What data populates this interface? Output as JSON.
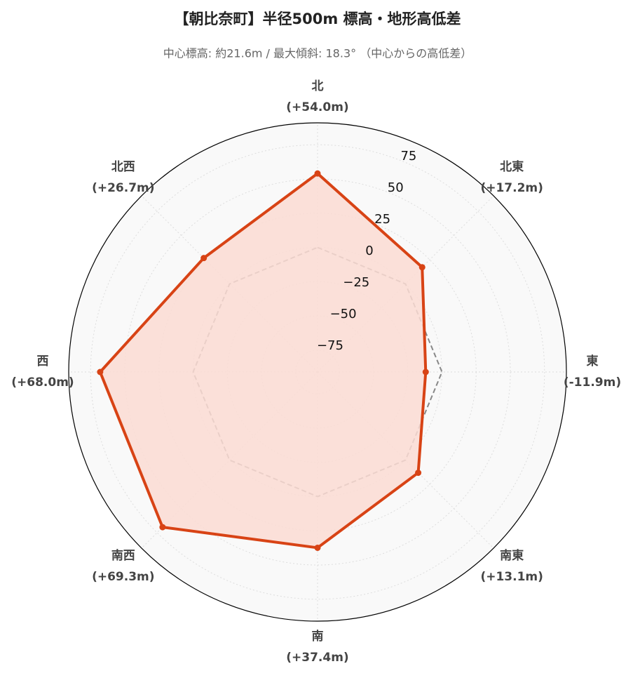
{
  "chart_data": {
    "type": "radar",
    "title": "【朝比奈町】半径500m 標高・地形高低差",
    "subtitle": "中心標高: 約21.6m / 最大傾斜: 18.3° （中心からの高低差）",
    "categories": [
      "北",
      "北東",
      "東",
      "南東",
      "南",
      "南西",
      "西",
      "北西"
    ],
    "values": [
      54.0,
      17.2,
      -11.9,
      13.1,
      37.4,
      69.3,
      68.0,
      26.7
    ],
    "value_labels": [
      "(+54.0m)",
      "(+17.2m)",
      "(-11.9m)",
      "(+13.1m)",
      "(+37.4m)",
      "(+69.3m)",
      "(+68.0m)",
      "(+26.7m)"
    ],
    "color": "#d84315",
    "fill_color": "#fbdcd3",
    "baseline": 0,
    "baseline_color": "#888888",
    "ylim": [
      -91,
      91
    ],
    "yticks": [
      {
        "value": -75,
        "label": "−75"
      },
      {
        "value": -50,
        "label": "−50"
      },
      {
        "value": -25,
        "label": "−25"
      },
      0,
      25,
      50,
      75
    ],
    "grid": true
  }
}
